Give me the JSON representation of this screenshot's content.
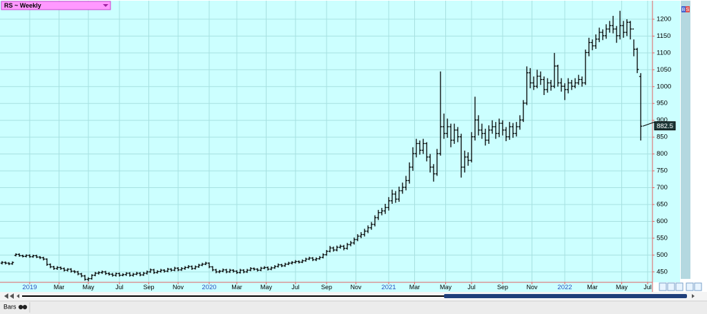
{
  "chart_data": {
    "type": "ohlc",
    "title": "RS ~ Weekly",
    "bottom_label": "Bars",
    "side_buttons": [
      "B",
      "S"
    ],
    "ylim": [
      419,
      1253
    ],
    "yticks": [
      450,
      500,
      550,
      600,
      650,
      700,
      750,
      800,
      850,
      900,
      950,
      1000,
      1050,
      1100,
      1150,
      1200
    ],
    "xlim": [
      -0.6,
      188.4
    ],
    "xticks": [
      {
        "value": 8,
        "label": "2019"
      },
      {
        "value": 16.5,
        "label": "Mar"
      },
      {
        "value": 25,
        "label": "May"
      },
      {
        "value": 34,
        "label": "Jul"
      },
      {
        "value": 42.5,
        "label": "Sep"
      },
      {
        "value": 51,
        "label": "Nov"
      },
      {
        "value": 60,
        "label": "2020"
      },
      {
        "value": 68,
        "label": "Mar"
      },
      {
        "value": 76.5,
        "label": "May"
      },
      {
        "value": 85,
        "label": "Jul"
      },
      {
        "value": 94,
        "label": "Sep"
      },
      {
        "value": 102.5,
        "label": "Nov"
      },
      {
        "value": 112,
        "label": "2021"
      },
      {
        "value": 119.5,
        "label": "Mar"
      },
      {
        "value": 128.5,
        "label": "May"
      },
      {
        "value": 136,
        "label": "Jul"
      },
      {
        "value": 145,
        "label": "Sep"
      },
      {
        "value": 153.5,
        "label": "Nov"
      },
      {
        "value": 163,
        "label": "2022"
      },
      {
        "value": 171,
        "label": "Mar"
      },
      {
        "value": 179.5,
        "label": "May"
      },
      {
        "value": 187,
        "label": "Jul"
      }
    ],
    "grid": true,
    "series": [
      {
        "name": "RS",
        "color": "#000000",
        "values": [
          [
            476,
            482,
            472,
            478
          ],
          [
            478,
            481,
            472,
            476
          ],
          [
            476,
            479,
            470,
            474
          ],
          [
            474,
            481,
            471,
            478
          ],
          [
            499,
            505,
            496,
            502
          ],
          [
            502,
            505,
            495,
            498
          ],
          [
            498,
            501,
            493,
            496
          ],
          [
            496,
            502,
            493,
            499
          ],
          [
            499,
            502,
            492,
            495
          ],
          [
            495,
            501,
            492,
            498
          ],
          [
            498,
            501,
            491,
            494
          ],
          [
            494,
            497,
            488,
            492
          ],
          [
            492,
            495,
            484,
            488
          ],
          [
            488,
            490,
            468,
            472
          ],
          [
            472,
            475,
            461,
            465
          ],
          [
            465,
            468,
            456,
            460
          ],
          [
            460,
            467,
            456,
            463
          ],
          [
            463,
            466,
            456,
            460
          ],
          [
            460,
            463,
            451,
            455
          ],
          [
            455,
            461,
            451,
            458
          ],
          [
            458,
            461,
            448,
            452
          ],
          [
            452,
            455,
            446,
            450
          ],
          [
            450,
            453,
            440,
            444
          ],
          [
            444,
            447,
            434,
            438
          ],
          [
            438,
            441,
            424,
            428
          ],
          [
            428,
            434,
            422,
            430
          ],
          [
            430,
            443,
            427,
            440
          ],
          [
            440,
            450,
            437,
            446
          ],
          [
            446,
            452,
            442,
            448
          ],
          [
            448,
            454,
            444,
            450
          ],
          [
            450,
            453,
            441,
            445
          ],
          [
            445,
            449,
            439,
            443
          ],
          [
            443,
            447,
            436,
            440
          ],
          [
            440,
            448,
            436,
            445
          ],
          [
            445,
            448,
            436,
            440
          ],
          [
            440,
            446,
            437,
            442
          ],
          [
            442,
            449,
            438,
            446
          ],
          [
            446,
            449,
            436,
            440
          ],
          [
            440,
            447,
            436,
            443
          ],
          [
            443,
            450,
            440,
            446
          ],
          [
            446,
            449,
            437,
            441
          ],
          [
            441,
            450,
            438,
            446
          ],
          [
            446,
            454,
            442,
            450
          ],
          [
            450,
            460,
            447,
            456
          ],
          [
            456,
            459,
            444,
            448
          ],
          [
            448,
            455,
            445,
            451
          ],
          [
            451,
            459,
            448,
            455
          ],
          [
            455,
            458,
            448,
            452
          ],
          [
            452,
            462,
            449,
            458
          ],
          [
            458,
            461,
            451,
            455
          ],
          [
            455,
            465,
            452,
            461
          ],
          [
            461,
            464,
            452,
            456
          ],
          [
            456,
            464,
            453,
            460
          ],
          [
            460,
            467,
            456,
            463
          ],
          [
            463,
            470,
            460,
            466
          ],
          [
            466,
            469,
            456,
            460
          ],
          [
            460,
            469,
            457,
            465
          ],
          [
            465,
            474,
            462,
            470
          ],
          [
            470,
            477,
            467,
            473
          ],
          [
            473,
            480,
            470,
            476
          ],
          [
            476,
            478,
            461,
            465
          ],
          [
            465,
            467,
            452,
            456
          ],
          [
            456,
            459,
            446,
            450
          ],
          [
            450,
            456,
            446,
            452
          ],
          [
            452,
            460,
            449,
            456
          ],
          [
            456,
            459,
            446,
            450
          ],
          [
            450,
            459,
            447,
            455
          ],
          [
            455,
            458,
            448,
            452
          ],
          [
            452,
            455,
            444,
            448
          ],
          [
            448,
            459,
            445,
            455
          ],
          [
            455,
            458,
            446,
            450
          ],
          [
            450,
            459,
            447,
            455
          ],
          [
            455,
            464,
            452,
            460
          ],
          [
            460,
            463,
            454,
            458
          ],
          [
            458,
            461,
            451,
            455
          ],
          [
            455,
            465,
            452,
            461
          ],
          [
            461,
            467,
            458,
            463
          ],
          [
            463,
            466,
            454,
            458
          ],
          [
            458,
            466,
            455,
            462
          ],
          [
            462,
            470,
            459,
            466
          ],
          [
            466,
            475,
            463,
            471
          ],
          [
            471,
            474,
            464,
            468
          ],
          [
            468,
            477,
            465,
            473
          ],
          [
            473,
            480,
            470,
            476
          ],
          [
            476,
            482,
            472,
            478
          ],
          [
            478,
            485,
            475,
            481
          ],
          [
            481,
            484,
            475,
            479
          ],
          [
            479,
            487,
            476,
            483
          ],
          [
            483,
            492,
            480,
            488
          ],
          [
            488,
            495,
            485,
            491
          ],
          [
            491,
            494,
            482,
            486
          ],
          [
            486,
            493,
            482,
            489
          ],
          [
            489,
            497,
            486,
            493
          ],
          [
            493,
            505,
            490,
            501
          ],
          [
            501,
            515,
            498,
            511
          ],
          [
            511,
            527,
            508,
            521
          ],
          [
            521,
            525,
            510,
            515
          ],
          [
            515,
            528,
            511,
            523
          ],
          [
            523,
            531,
            519,
            526
          ],
          [
            526,
            530,
            514,
            520
          ],
          [
            520,
            536,
            516,
            531
          ],
          [
            531,
            542,
            526,
            536
          ],
          [
            536,
            552,
            531,
            546
          ],
          [
            546,
            562,
            541,
            556
          ],
          [
            556,
            568,
            550,
            561
          ],
          [
            561,
            578,
            555,
            571
          ],
          [
            571,
            588,
            565,
            581
          ],
          [
            581,
            598,
            575,
            591
          ],
          [
            591,
            618,
            585,
            611
          ],
          [
            611,
            634,
            604,
            626
          ],
          [
            626,
            640,
            618,
            631
          ],
          [
            631,
            652,
            622,
            641
          ],
          [
            641,
            672,
            632,
            661
          ],
          [
            661,
            694,
            652,
            681
          ],
          [
            681,
            690,
            655,
            666
          ],
          [
            666,
            703,
            658,
            691
          ],
          [
            691,
            715,
            682,
            701
          ],
          [
            701,
            735,
            692,
            721
          ],
          [
            721,
            775,
            712,
            761
          ],
          [
            761,
            820,
            750,
            801
          ],
          [
            801,
            845,
            790,
            831
          ],
          [
            831,
            840,
            798,
            811
          ],
          [
            811,
            845,
            800,
            831
          ],
          [
            831,
            835,
            778,
            791
          ],
          [
            791,
            800,
            745,
            761
          ],
          [
            761,
            770,
            718,
            741
          ],
          [
            741,
            815,
            735,
            801
          ],
          [
            801,
            1045,
            795,
            881
          ],
          [
            881,
            920,
            845,
            861
          ],
          [
            861,
            905,
            848,
            881
          ],
          [
            881,
            890,
            820,
            841
          ],
          [
            841,
            890,
            830,
            871
          ],
          [
            871,
            880,
            835,
            851
          ],
          [
            851,
            860,
            730,
            761
          ],
          [
            761,
            810,
            745,
            791
          ],
          [
            791,
            805,
            765,
            781
          ],
          [
            781,
            865,
            775,
            851
          ],
          [
            851,
            970,
            840,
            901
          ],
          [
            901,
            915,
            855,
            871
          ],
          [
            871,
            890,
            845,
            861
          ],
          [
            861,
            875,
            825,
            841
          ],
          [
            841,
            885,
            830,
            871
          ],
          [
            871,
            900,
            860,
            881
          ],
          [
            881,
            895,
            845,
            861
          ],
          [
            861,
            905,
            850,
            891
          ],
          [
            891,
            900,
            855,
            871
          ],
          [
            871,
            880,
            838,
            851
          ],
          [
            851,
            895,
            842,
            881
          ],
          [
            881,
            892,
            848,
            861
          ],
          [
            861,
            895,
            852,
            881
          ],
          [
            881,
            915,
            872,
            901
          ],
          [
            901,
            960,
            895,
            951
          ],
          [
            951,
            1060,
            945,
            1041
          ],
          [
            1041,
            1055,
            995,
            1011
          ],
          [
            1011,
            1030,
            990,
            1001
          ],
          [
            1001,
            1050,
            995,
            1031
          ],
          [
            1031,
            1045,
            1005,
            1021
          ],
          [
            1021,
            1030,
            975,
            991
          ],
          [
            991,
            1025,
            982,
            1011
          ],
          [
            1011,
            1020,
            988,
            1001
          ],
          [
            1001,
            1100,
            995,
            1061
          ],
          [
            1061,
            1065,
            1000,
            1011
          ],
          [
            1011,
            1025,
            985,
            1001
          ],
          [
            1001,
            1010,
            960,
            991
          ],
          [
            991,
            1025,
            980,
            1011
          ],
          [
            1011,
            1020,
            990,
            1001
          ],
          [
            1001,
            1025,
            995,
            1011
          ],
          [
            1011,
            1035,
            1005,
            1021
          ],
          [
            1021,
            1030,
            1000,
            1011
          ],
          [
            1011,
            1110,
            1005,
            1101
          ],
          [
            1101,
            1145,
            1090,
            1131
          ],
          [
            1131,
            1140,
            1108,
            1121
          ],
          [
            1121,
            1155,
            1112,
            1141
          ],
          [
            1141,
            1175,
            1132,
            1161
          ],
          [
            1161,
            1170,
            1138,
            1151
          ],
          [
            1151,
            1185,
            1142,
            1171
          ],
          [
            1171,
            1195,
            1160,
            1181
          ],
          [
            1181,
            1210,
            1158,
            1171
          ],
          [
            1171,
            1180,
            1130,
            1151
          ],
          [
            1151,
            1225,
            1140,
            1181
          ],
          [
            1181,
            1195,
            1145,
            1161
          ],
          [
            1161,
            1200,
            1150,
            1191
          ],
          [
            1191,
            1195,
            1140,
            1171
          ],
          [
            1171,
            1140,
            1090,
            1111
          ],
          [
            1111,
            1115,
            1040,
            1051
          ],
          [
            1030,
            1040,
            840,
            882.5
          ]
        ]
      }
    ]
  }
}
